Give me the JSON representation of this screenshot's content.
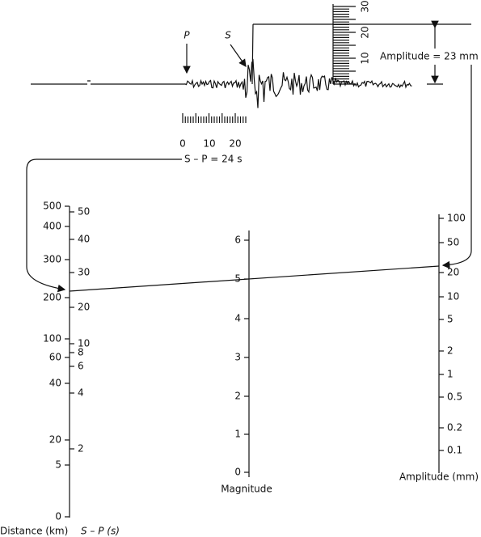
{
  "seismogram": {
    "p_label": "P",
    "s_label": "S",
    "time_scale": [
      "0",
      "10",
      "20"
    ],
    "amplitude_scale": [
      "10",
      "20",
      "30"
    ],
    "amplitude_note": "Amplitude = 23 mm",
    "sp_note": "S – P = 24 s"
  },
  "nomogram": {
    "distance": {
      "title": "Distance (km)",
      "labels": [
        "500",
        "400",
        "300",
        "200",
        "100",
        "60",
        "40",
        "20",
        "5",
        "0"
      ]
    },
    "sp": {
      "title": "S – P (s)",
      "labels": [
        "50",
        "40",
        "30",
        "20",
        "10",
        "8",
        "6",
        "4",
        "2"
      ]
    },
    "magnitude": {
      "title": "Magnitude",
      "labels": [
        "6",
        "5",
        "4",
        "3",
        "2",
        "1",
        "0"
      ]
    },
    "amplitude": {
      "title": "Amplitude (mm)",
      "labels": [
        "100",
        "50",
        "20",
        "10",
        "5",
        "2",
        "1",
        "0.5",
        "0.2",
        "0.1"
      ]
    }
  }
}
